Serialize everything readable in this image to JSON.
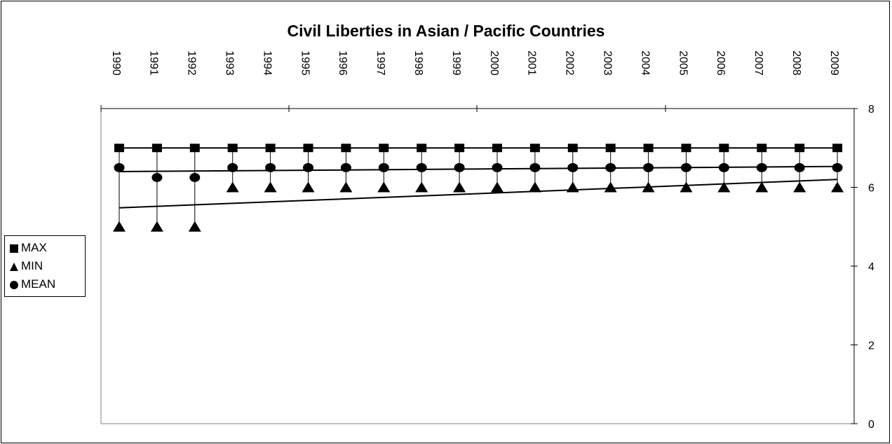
{
  "chart_data": {
    "type": "line",
    "title": "Civil Liberties in Asian / Pacific Countries",
    "xlabel": "",
    "ylabel": "",
    "categories": [
      "1990",
      "1991",
      "1992",
      "1993",
      "1994",
      "1995",
      "1996",
      "1997",
      "1998",
      "1999",
      "2000",
      "2001",
      "2002",
      "2003",
      "2004",
      "2005",
      "2006",
      "2007",
      "2008",
      "2009"
    ],
    "ylim": [
      0,
      8
    ],
    "yticks": [
      "0",
      "2",
      "4",
      "6",
      "8"
    ],
    "x_axis_position": "top",
    "y_axis_position": "right",
    "grid": false,
    "legend_position": "left",
    "series": [
      {
        "name": "MAX",
        "marker": "square",
        "values": [
          7,
          7,
          7,
          7,
          7,
          7,
          7,
          7,
          7,
          7,
          7,
          7,
          7,
          7,
          7,
          7,
          7,
          7,
          7,
          7
        ]
      },
      {
        "name": "MIN",
        "marker": "triangle",
        "values": [
          5,
          5,
          5,
          6,
          6,
          6,
          6,
          6,
          6,
          6,
          6,
          6,
          6,
          6,
          6,
          6,
          6,
          6,
          6,
          6
        ]
      },
      {
        "name": "MEAN",
        "marker": "circle",
        "values": [
          6.5,
          6.25,
          6.25,
          6.5,
          6.5,
          6.5,
          6.5,
          6.5,
          6.5,
          6.5,
          6.5,
          6.5,
          6.5,
          6.5,
          6.5,
          6.5,
          6.5,
          6.5,
          6.5,
          6.5
        ]
      }
    ],
    "trendlines": [
      {
        "series": "MEAN",
        "start": 6.4,
        "end": 6.53
      },
      {
        "series": "MIN",
        "start": 5.48,
        "end": 6.2
      }
    ],
    "colors": {
      "marker": "#000000",
      "line": "#000000",
      "background": "#ffffff"
    }
  },
  "legend": {
    "items": [
      {
        "label": "MAX",
        "icon": "square-marker-icon"
      },
      {
        "label": "MIN",
        "icon": "triangle-marker-icon"
      },
      {
        "label": "MEAN",
        "icon": "circle-marker-icon"
      }
    ]
  }
}
